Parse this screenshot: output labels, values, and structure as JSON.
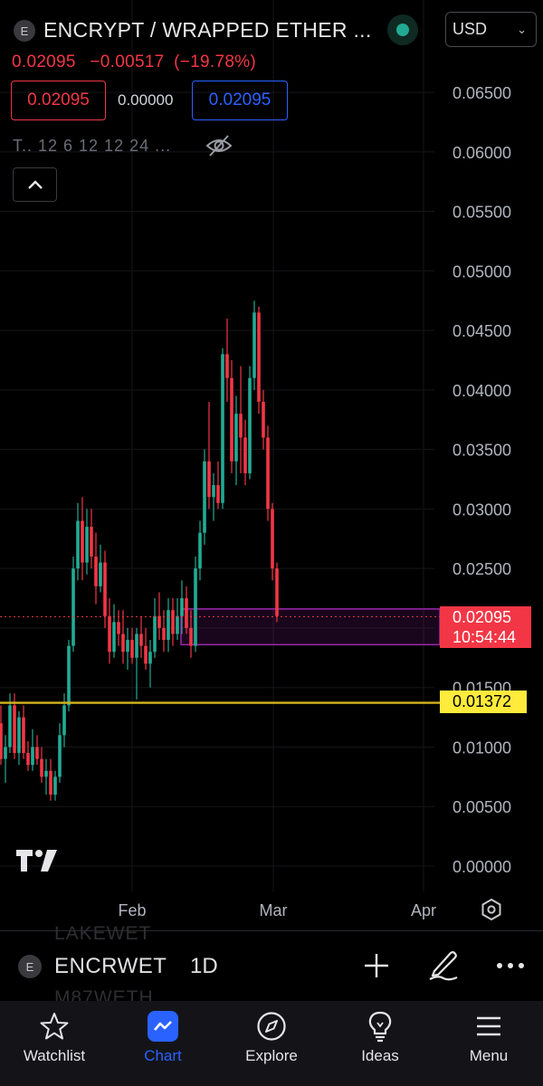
{
  "header": {
    "symbol_initial": "E",
    "title": "ENCRYPT / WRAPPED ETHER ...",
    "currency": "USD",
    "last_price": "0.02095",
    "change": "−0.00517",
    "change_pct": "(−19.78%)",
    "bid": "0.02095",
    "spread": "0.00000",
    "ask": "0.02095",
    "indicators": "T.. 12 6 12 12 24 ..."
  },
  "chart_data": {
    "type": "candlestick",
    "y_ticks": [
      "0.06500",
      "0.06000",
      "0.05500",
      "0.05000",
      "0.04500",
      "0.04000",
      "0.03500",
      "0.03000",
      "0.02500",
      "0.02000",
      "0.01500",
      "0.01000",
      "0.00500",
      "0.00000"
    ],
    "ylim": [
      0.0,
      0.065
    ],
    "x_ticks": [
      "Feb",
      "Mar",
      "Apr"
    ],
    "current_price": "0.02095",
    "countdown": "10:54:44",
    "horizontal_line": "0.01372",
    "zone": [
      0.0186,
      0.0216
    ],
    "candles": [
      [
        0.012,
        0.0135,
        0.0085,
        0.009
      ],
      [
        0.009,
        0.011,
        0.007,
        0.01
      ],
      [
        0.01,
        0.0145,
        0.0095,
        0.0135
      ],
      [
        0.0135,
        0.0145,
        0.009,
        0.0095
      ],
      [
        0.0095,
        0.013,
        0.0085,
        0.0125
      ],
      [
        0.0125,
        0.0135,
        0.009,
        0.0095
      ],
      [
        0.0095,
        0.0105,
        0.008,
        0.0085
      ],
      [
        0.0085,
        0.0115,
        0.008,
        0.01
      ],
      [
        0.01,
        0.011,
        0.0085,
        0.009
      ],
      [
        0.009,
        0.01,
        0.007,
        0.0075
      ],
      [
        0.0075,
        0.009,
        0.006,
        0.008
      ],
      [
        0.008,
        0.009,
        0.0055,
        0.006
      ],
      [
        0.006,
        0.008,
        0.0055,
        0.0075
      ],
      [
        0.0075,
        0.012,
        0.007,
        0.011
      ],
      [
        0.011,
        0.0145,
        0.01,
        0.0135
      ],
      [
        0.0135,
        0.019,
        0.013,
        0.0185
      ],
      [
        0.0185,
        0.026,
        0.018,
        0.025
      ],
      [
        0.025,
        0.0305,
        0.024,
        0.029
      ],
      [
        0.029,
        0.031,
        0.024,
        0.0255
      ],
      [
        0.0255,
        0.03,
        0.0245,
        0.0285
      ],
      [
        0.0285,
        0.03,
        0.025,
        0.026
      ],
      [
        0.026,
        0.028,
        0.022,
        0.0235
      ],
      [
        0.0235,
        0.027,
        0.023,
        0.0255
      ],
      [
        0.0255,
        0.0265,
        0.02,
        0.021
      ],
      [
        0.021,
        0.0225,
        0.017,
        0.018
      ],
      [
        0.018,
        0.022,
        0.0175,
        0.0205
      ],
      [
        0.0205,
        0.0215,
        0.0185,
        0.0195
      ],
      [
        0.0195,
        0.0215,
        0.017,
        0.018
      ],
      [
        0.018,
        0.02,
        0.0165,
        0.019
      ],
      [
        0.019,
        0.02,
        0.017,
        0.0175
      ],
      [
        0.0175,
        0.02,
        0.014,
        0.0195
      ],
      [
        0.0195,
        0.021,
        0.0175,
        0.0185
      ],
      [
        0.0185,
        0.02,
        0.0165,
        0.017
      ],
      [
        0.017,
        0.019,
        0.015,
        0.018
      ],
      [
        0.018,
        0.0225,
        0.0175,
        0.021
      ],
      [
        0.021,
        0.023,
        0.019,
        0.02
      ],
      [
        0.02,
        0.0215,
        0.018,
        0.019
      ],
      [
        0.019,
        0.0225,
        0.018,
        0.0215
      ],
      [
        0.0215,
        0.0225,
        0.0185,
        0.0195
      ],
      [
        0.0195,
        0.0225,
        0.019,
        0.021
      ],
      [
        0.021,
        0.024,
        0.0195,
        0.0225
      ],
      [
        0.0225,
        0.0235,
        0.0195,
        0.02
      ],
      [
        0.02,
        0.0215,
        0.0175,
        0.0185
      ],
      [
        0.0185,
        0.026,
        0.018,
        0.025
      ],
      [
        0.025,
        0.029,
        0.024,
        0.028
      ],
      [
        0.028,
        0.035,
        0.027,
        0.034
      ],
      [
        0.034,
        0.039,
        0.03,
        0.031
      ],
      [
        0.031,
        0.033,
        0.029,
        0.032
      ],
      [
        0.032,
        0.034,
        0.03,
        0.0305
      ],
      [
        0.0305,
        0.0435,
        0.03,
        0.043
      ],
      [
        0.043,
        0.046,
        0.039,
        0.041
      ],
      [
        0.041,
        0.0425,
        0.033,
        0.034
      ],
      [
        0.034,
        0.0395,
        0.032,
        0.038
      ],
      [
        0.038,
        0.042,
        0.033,
        0.036
      ],
      [
        0.036,
        0.0375,
        0.032,
        0.033
      ],
      [
        0.033,
        0.042,
        0.0325,
        0.041
      ],
      [
        0.041,
        0.0475,
        0.04,
        0.0465
      ],
      [
        0.0465,
        0.047,
        0.038,
        0.039
      ],
      [
        0.039,
        0.04,
        0.035,
        0.036
      ],
      [
        0.036,
        0.037,
        0.029,
        0.03
      ],
      [
        0.03,
        0.0305,
        0.024,
        0.025
      ],
      [
        0.025,
        0.0255,
        0.0205,
        0.021
      ]
    ]
  },
  "symbol_bar": {
    "symbol_initial": "E",
    "symbol": "ENCRWET",
    "interval": "1D",
    "ghost_above": "LAKEWET",
    "ghost_below": "M87WETH"
  },
  "nav": {
    "items": [
      {
        "label": "Watchlist",
        "icon": "star-icon"
      },
      {
        "label": "Chart",
        "icon": "chart-icon"
      },
      {
        "label": "Explore",
        "icon": "compass-icon"
      },
      {
        "label": "Ideas",
        "icon": "lightbulb-icon"
      },
      {
        "label": "Menu",
        "icon": "hamburger-icon"
      }
    ]
  },
  "colors": {
    "up": "#22ab94",
    "down": "#f23645",
    "accent": "#2962ff",
    "level": "#d4b51e",
    "zone": "#9c27b0"
  }
}
